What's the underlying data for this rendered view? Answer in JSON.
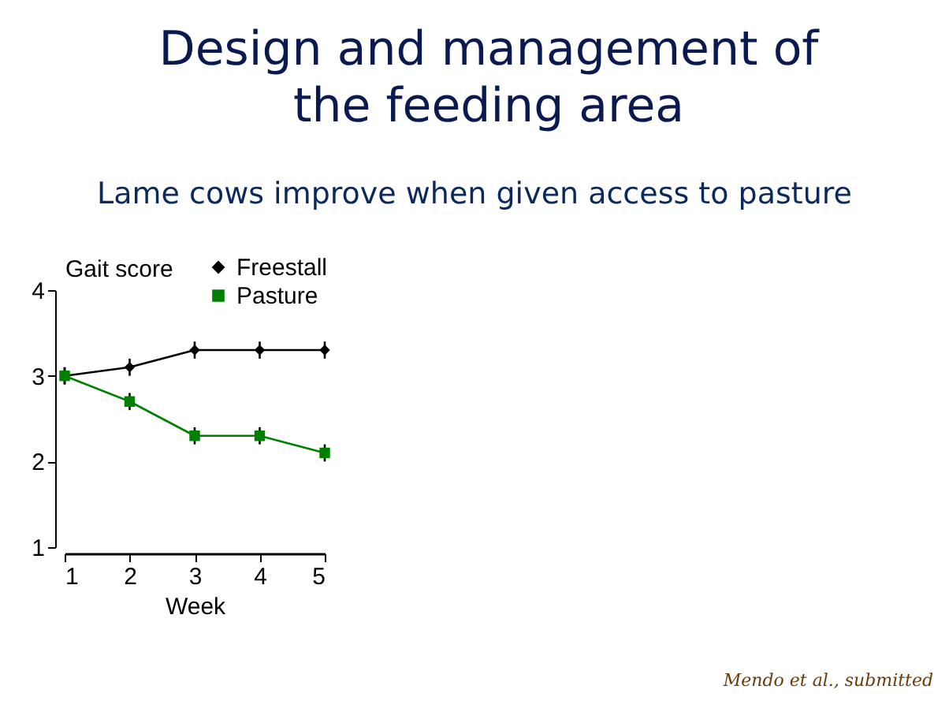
{
  "chart_data": {
    "type": "line",
    "title": "Design and management of the feeding area",
    "subtitle": "Lame cows improve when given access to pasture",
    "xlabel": "Week",
    "ylabel": "Gait score",
    "x": [
      1,
      2,
      3,
      4,
      5
    ],
    "xlim": [
      1,
      5
    ],
    "xticks": [
      1,
      2,
      3,
      4,
      5
    ],
    "ylim": [
      1,
      4
    ],
    "yticks": [
      1,
      2,
      3,
      4
    ],
    "series": [
      {
        "name": "Freestall",
        "color": "#000000",
        "marker": "diamond",
        "values": [
          3,
          3.1,
          3.3,
          3.3,
          3.3
        ],
        "errors": [
          0.1,
          0.1,
          0.1,
          0.1,
          0.1
        ]
      },
      {
        "name": "Pasture",
        "color": "#008000",
        "marker": "square",
        "values": [
          3,
          2.7,
          2.3,
          2.3,
          2.1
        ],
        "errors": [
          0.1,
          0.1,
          0.1,
          0.1,
          0.1
        ]
      }
    ],
    "grid": false,
    "legend": "top right",
    "line_style": "solid",
    "annotations": [
      "Mendo et al., submitted"
    ]
  }
}
